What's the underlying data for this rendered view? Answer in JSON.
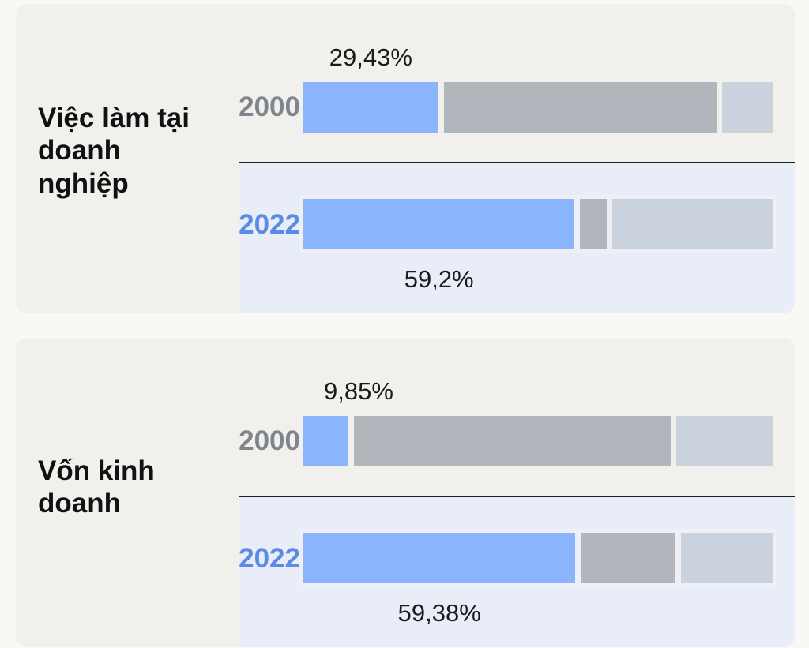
{
  "chart_data": {
    "type": "bar",
    "orientation": "horizontal",
    "stacked": true,
    "segment_colors": [
      "#8ab4fb",
      "#b1b6bc",
      "#cad2de"
    ],
    "groups": [
      {
        "title": "Việc làm tại doanh nghiệp",
        "rows": [
          {
            "year": "2000",
            "year_color": "#7f858d",
            "values": [
              29.43,
              59.57,
              11.0
            ],
            "label": "29,43%"
          },
          {
            "year": "2022",
            "year_color": "#5a8ce6",
            "values": [
              59.2,
              5.8,
              35.0
            ],
            "label": "59,2%"
          }
        ]
      },
      {
        "title": "Vốn kinh doanh",
        "rows": [
          {
            "year": "2000",
            "year_color": "#7f858d",
            "values": [
              9.85,
              69.15,
              21.0
            ],
            "label": "9,85%"
          },
          {
            "year": "2022",
            "year_color": "#5a8ce6",
            "values": [
              59.38,
              20.62,
              20.0
            ],
            "label": "59,38%"
          }
        ]
      }
    ],
    "legend": "none",
    "grid": false
  }
}
